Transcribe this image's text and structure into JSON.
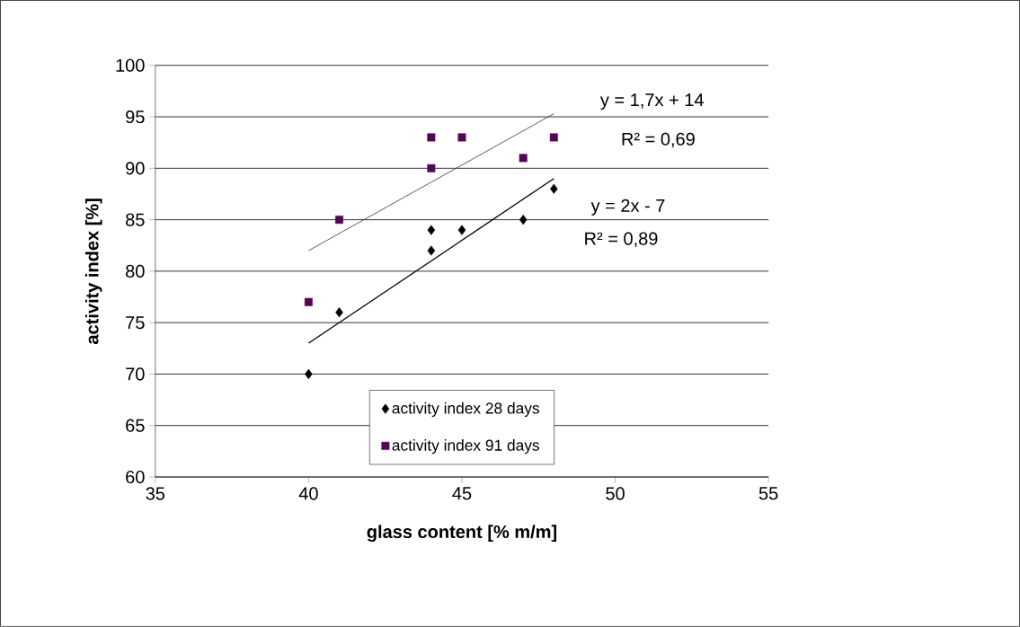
{
  "chart_data": {
    "type": "scatter",
    "xlabel": "glass content [% m/m]",
    "ylabel": "activity index [%]",
    "xlim": [
      35,
      55
    ],
    "xticks": [
      35,
      40,
      45,
      50,
      55
    ],
    "ylim": [
      60,
      100
    ],
    "yticks": [
      60,
      65,
      70,
      75,
      80,
      85,
      90,
      95,
      100
    ],
    "grid": "y",
    "legend": "bottom",
    "series": [
      {
        "name": "activity index 28 days",
        "marker": "diamond",
        "color": "#000000",
        "x": [
          40,
          41,
          44,
          44,
          45,
          47,
          48
        ],
        "values": [
          70,
          76,
          82,
          84,
          84,
          85,
          88
        ]
      },
      {
        "name": "activity index 91 days",
        "marker": "square",
        "color": "#4b0a4b",
        "x": [
          40,
          41,
          44,
          44,
          45,
          47,
          48
        ],
        "values": [
          77,
          85,
          90,
          93,
          93,
          91,
          93
        ]
      },
      {
        "type": "line",
        "marker": "none",
        "color": "#000000",
        "x": [
          40,
          48
        ],
        "values": [
          73,
          89
        ]
      },
      {
        "type": "line",
        "marker": "none",
        "color": "#333333",
        "x": [
          40,
          48
        ],
        "values": [
          82,
          95.3
        ]
      }
    ],
    "annotations": [
      "y = 1,7x + 14",
      "R² = 0,69",
      "y = 2x - 7",
      "R² = 0,89"
    ]
  }
}
